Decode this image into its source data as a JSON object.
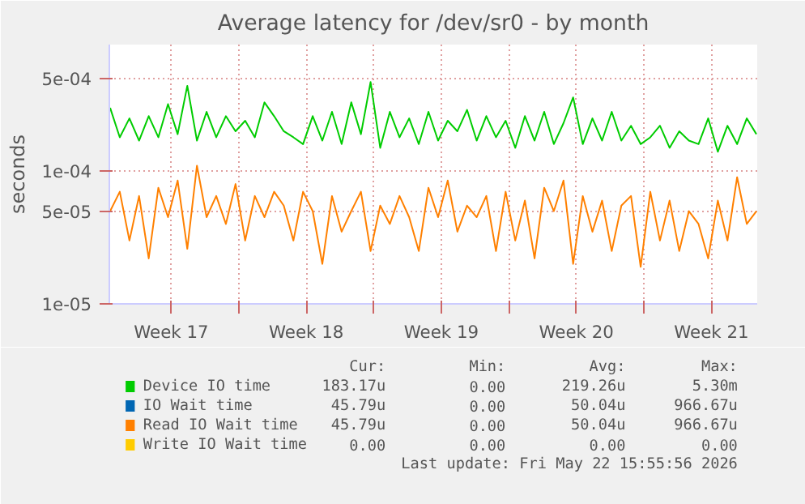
{
  "chart_data": {
    "type": "line",
    "title": "Average latency for /dev/sr0 - by month",
    "ylabel": "seconds",
    "x": [
      "2026-04-20T08:00",
      "2026-04-20T20:00",
      "2026-04-21T08:00",
      "2026-04-21T20:00",
      "2026-04-22T08:00",
      "2026-04-22T20:00",
      "2026-04-23T08:00",
      "2026-04-23T20:00",
      "2026-04-24T08:00",
      "2026-04-24T20:00",
      "2026-04-25T08:00",
      "2026-04-25T20:00",
      "2026-04-26T08:00",
      "2026-04-26T20:00",
      "2026-04-27T08:00",
      "2026-04-27T20:00",
      "2026-04-28T08:00",
      "2026-04-28T20:00",
      "2026-04-29T08:00",
      "2026-04-29T20:00",
      "2026-04-30T08:00",
      "2026-04-30T20:00",
      "2026-05-01T08:00",
      "2026-05-01T20:00",
      "2026-05-02T08:00",
      "2026-05-02T20:00",
      "2026-05-03T08:00",
      "2026-05-03T20:00",
      "2026-05-04T08:00",
      "2026-05-04T20:00",
      "2026-05-05T08:00",
      "2026-05-05T20:00",
      "2026-05-06T08:00",
      "2026-05-06T20:00",
      "2026-05-07T08:00",
      "2026-05-07T20:00",
      "2026-05-08T08:00",
      "2026-05-08T20:00",
      "2026-05-09T08:00",
      "2026-05-09T20:00",
      "2026-05-10T08:00",
      "2026-05-10T20:00",
      "2026-05-11T08:00",
      "2026-05-11T20:00",
      "2026-05-12T08:00",
      "2026-05-12T20:00",
      "2026-05-13T08:00",
      "2026-05-13T20:00",
      "2026-05-14T08:00",
      "2026-05-14T20:00",
      "2026-05-15T08:00",
      "2026-05-15T20:00",
      "2026-05-16T08:00",
      "2026-05-16T20:00",
      "2026-05-17T08:00",
      "2026-05-17T20:00",
      "2026-05-18T08:00",
      "2026-05-18T20:00",
      "2026-05-19T08:00",
      "2026-05-19T20:00",
      "2026-05-20T08:00",
      "2026-05-20T20:00",
      "2026-05-21T08:00",
      "2026-05-21T20:00",
      "2026-05-22T08:00",
      "2026-05-22T20:00",
      "2026-05-23T08:00",
      "2026-05-23T20:00"
    ],
    "xlim": [
      "2026-04-20T07:00",
      "2026-05-23T21:00"
    ],
    "xticks": [
      {
        "value": "2026-04-23T12:00",
        "label": "Week 17"
      },
      {
        "value": "2026-04-27",
        "label": null
      },
      {
        "value": "2026-04-30T12:00",
        "label": "Week 18"
      },
      {
        "value": "2026-05-04",
        "label": null
      },
      {
        "value": "2026-05-07T12:00",
        "label": "Week 19"
      },
      {
        "value": "2026-05-11",
        "label": null
      },
      {
        "value": "2026-05-14T12:00",
        "label": "Week 20"
      },
      {
        "value": "2026-05-18",
        "label": null
      },
      {
        "value": "2026-05-21T12:00",
        "label": "Week 21"
      }
    ],
    "ylim": [
      1e-05,
      0.0009
    ],
    "yticks": [
      {
        "value": 1e-05,
        "label": "1e-05"
      },
      {
        "value": 5e-05,
        "label": "5e-05"
      },
      {
        "value": 0.0001,
        "label": "1e-04"
      },
      {
        "value": 0.0005,
        "label": "5e-04"
      }
    ],
    "log": "y",
    "grid": true,
    "legend": "bottom",
    "series": [
      {
        "name": "Device IO time",
        "color": "#00cc00",
        "values": [
          0.0003,
          0.00018,
          0.00025,
          0.00017,
          0.00026,
          0.00018,
          0.00032,
          0.00019,
          0.00044,
          0.00017,
          0.00028,
          0.00018,
          0.00026,
          0.0002,
          0.00024,
          0.00018,
          0.00033,
          0.00026,
          0.0002,
          0.00018,
          0.00016,
          0.00026,
          0.00017,
          0.00028,
          0.00016,
          0.00033,
          0.00019,
          0.00047,
          0.00015,
          0.00028,
          0.00018,
          0.00025,
          0.00016,
          0.00028,
          0.00017,
          0.00024,
          0.0002,
          0.00029,
          0.00017,
          0.00026,
          0.00018,
          0.00024,
          0.00015,
          0.00026,
          0.00017,
          0.00028,
          0.00016,
          0.00023,
          0.00036,
          0.00016,
          0.00025,
          0.00017,
          0.00028,
          0.00017,
          0.00022,
          0.00016,
          0.00018,
          0.00022,
          0.00015,
          0.0002,
          0.00017,
          0.00016,
          0.00025,
          0.00014,
          0.00022,
          0.00016,
          0.00025,
          0.00019
        ]
      },
      {
        "name": "IO Wait time",
        "color": "#0066b3",
        "values": [
          null,
          null,
          null,
          null,
          null,
          null,
          null,
          null,
          null,
          null,
          null,
          null,
          null,
          null,
          null,
          null,
          null,
          null,
          null,
          null,
          null,
          null,
          null,
          null,
          null,
          null,
          null,
          null,
          null,
          null,
          null,
          null,
          null,
          null,
          null,
          null,
          null,
          null,
          null,
          null,
          null,
          null,
          null,
          null,
          null,
          null,
          null,
          null,
          null,
          null,
          null,
          null,
          null,
          null,
          null,
          null,
          null,
          null,
          null,
          null,
          null,
          null,
          null,
          null,
          null,
          null,
          null,
          null
        ]
      },
      {
        "name": "Read IO Wait time",
        "color": "#ff8000",
        "values": [
          5e-05,
          7e-05,
          3e-05,
          6.5e-05,
          2.2e-05,
          7.5e-05,
          4.5e-05,
          8.5e-05,
          2.6e-05,
          0.00011,
          4.5e-05,
          6.5e-05,
          4e-05,
          8e-05,
          3e-05,
          6.5e-05,
          4.5e-05,
          7e-05,
          5.5e-05,
          3e-05,
          7e-05,
          5e-05,
          2e-05,
          6.5e-05,
          3.5e-05,
          5e-05,
          7e-05,
          2.5e-05,
          5.5e-05,
          4e-05,
          6.5e-05,
          4.5e-05,
          2.5e-05,
          7.5e-05,
          4.5e-05,
          8.5e-05,
          3.5e-05,
          5.5e-05,
          4.5e-05,
          6.5e-05,
          2.5e-05,
          7e-05,
          3e-05,
          6e-05,
          2.2e-05,
          7.5e-05,
          5e-05,
          8.5e-05,
          2e-05,
          6.5e-05,
          3.5e-05,
          6e-05,
          2.5e-05,
          5.5e-05,
          6.5e-05,
          1.9e-05,
          7e-05,
          3e-05,
          6e-05,
          2.5e-05,
          5e-05,
          4e-05,
          2.2e-05,
          6e-05,
          3e-05,
          9e-05,
          4e-05,
          5e-05
        ]
      },
      {
        "name": "Write IO Wait time",
        "color": "#ffcc00",
        "values": [
          null,
          null,
          null,
          null,
          null,
          null,
          null,
          null,
          null,
          null,
          null,
          null,
          null,
          null,
          null,
          null,
          null,
          null,
          null,
          null,
          null,
          null,
          null,
          null,
          null,
          null,
          null,
          null,
          null,
          null,
          null,
          null,
          null,
          null,
          null,
          null,
          null,
          null,
          null,
          null,
          null,
          null,
          null,
          null,
          null,
          null,
          null,
          null,
          null,
          null,
          null,
          null,
          null,
          null,
          null,
          null,
          null,
          null,
          null,
          null,
          null,
          null,
          null,
          null,
          null,
          null,
          null,
          null
        ]
      }
    ],
    "annotations": [
      "Cur:",
      "Min:",
      "Avg:",
      "Max:",
      "183.17u",
      "0.00",
      "219.26u",
      "5.30m",
      "45.79u",
      "0.00",
      "50.04u",
      "966.67u",
      "45.79u",
      "0.00",
      "50.04u",
      "966.67u",
      "0.00",
      "0.00",
      "0.00",
      "0.00",
      "Last update: Fri May 22 15:55:56 2026"
    ]
  }
}
